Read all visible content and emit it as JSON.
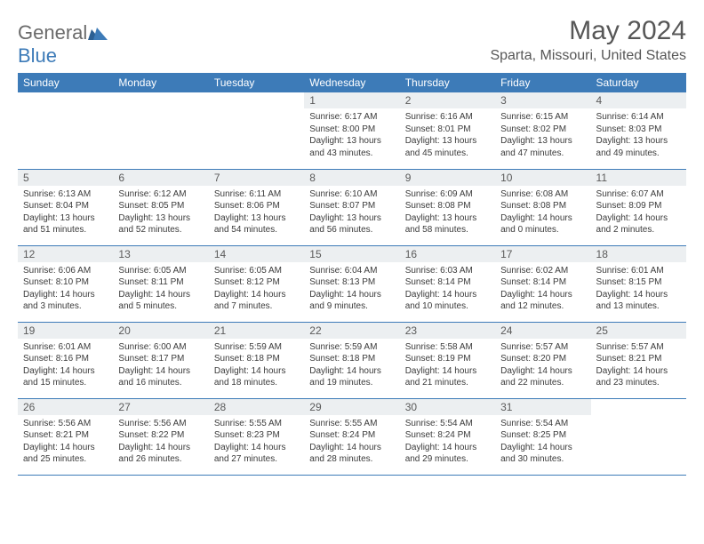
{
  "logo": {
    "general": "General",
    "blue": "Blue"
  },
  "title": "May 2024",
  "location": "Sparta, Missouri, United States",
  "colors": {
    "header_bg": "#3d7bb8",
    "header_text": "#ffffff",
    "daynum_bg": "#eceff1",
    "text": "#3a3a3a",
    "title_text": "#575757",
    "row_border": "#3d7bb8"
  },
  "dayHeaders": [
    "Sunday",
    "Monday",
    "Tuesday",
    "Wednesday",
    "Thursday",
    "Friday",
    "Saturday"
  ],
  "weeks": [
    [
      null,
      null,
      null,
      {
        "d": "1",
        "sr": "6:17 AM",
        "ss": "8:00 PM",
        "dl": "13 hours and 43 minutes."
      },
      {
        "d": "2",
        "sr": "6:16 AM",
        "ss": "8:01 PM",
        "dl": "13 hours and 45 minutes."
      },
      {
        "d": "3",
        "sr": "6:15 AM",
        "ss": "8:02 PM",
        "dl": "13 hours and 47 minutes."
      },
      {
        "d": "4",
        "sr": "6:14 AM",
        "ss": "8:03 PM",
        "dl": "13 hours and 49 minutes."
      }
    ],
    [
      {
        "d": "5",
        "sr": "6:13 AM",
        "ss": "8:04 PM",
        "dl": "13 hours and 51 minutes."
      },
      {
        "d": "6",
        "sr": "6:12 AM",
        "ss": "8:05 PM",
        "dl": "13 hours and 52 minutes."
      },
      {
        "d": "7",
        "sr": "6:11 AM",
        "ss": "8:06 PM",
        "dl": "13 hours and 54 minutes."
      },
      {
        "d": "8",
        "sr": "6:10 AM",
        "ss": "8:07 PM",
        "dl": "13 hours and 56 minutes."
      },
      {
        "d": "9",
        "sr": "6:09 AM",
        "ss": "8:08 PM",
        "dl": "13 hours and 58 minutes."
      },
      {
        "d": "10",
        "sr": "6:08 AM",
        "ss": "8:08 PM",
        "dl": "14 hours and 0 minutes."
      },
      {
        "d": "11",
        "sr": "6:07 AM",
        "ss": "8:09 PM",
        "dl": "14 hours and 2 minutes."
      }
    ],
    [
      {
        "d": "12",
        "sr": "6:06 AM",
        "ss": "8:10 PM",
        "dl": "14 hours and 3 minutes."
      },
      {
        "d": "13",
        "sr": "6:05 AM",
        "ss": "8:11 PM",
        "dl": "14 hours and 5 minutes."
      },
      {
        "d": "14",
        "sr": "6:05 AM",
        "ss": "8:12 PM",
        "dl": "14 hours and 7 minutes."
      },
      {
        "d": "15",
        "sr": "6:04 AM",
        "ss": "8:13 PM",
        "dl": "14 hours and 9 minutes."
      },
      {
        "d": "16",
        "sr": "6:03 AM",
        "ss": "8:14 PM",
        "dl": "14 hours and 10 minutes."
      },
      {
        "d": "17",
        "sr": "6:02 AM",
        "ss": "8:14 PM",
        "dl": "14 hours and 12 minutes."
      },
      {
        "d": "18",
        "sr": "6:01 AM",
        "ss": "8:15 PM",
        "dl": "14 hours and 13 minutes."
      }
    ],
    [
      {
        "d": "19",
        "sr": "6:01 AM",
        "ss": "8:16 PM",
        "dl": "14 hours and 15 minutes."
      },
      {
        "d": "20",
        "sr": "6:00 AM",
        "ss": "8:17 PM",
        "dl": "14 hours and 16 minutes."
      },
      {
        "d": "21",
        "sr": "5:59 AM",
        "ss": "8:18 PM",
        "dl": "14 hours and 18 minutes."
      },
      {
        "d": "22",
        "sr": "5:59 AM",
        "ss": "8:18 PM",
        "dl": "14 hours and 19 minutes."
      },
      {
        "d": "23",
        "sr": "5:58 AM",
        "ss": "8:19 PM",
        "dl": "14 hours and 21 minutes."
      },
      {
        "d": "24",
        "sr": "5:57 AM",
        "ss": "8:20 PM",
        "dl": "14 hours and 22 minutes."
      },
      {
        "d": "25",
        "sr": "5:57 AM",
        "ss": "8:21 PM",
        "dl": "14 hours and 23 minutes."
      }
    ],
    [
      {
        "d": "26",
        "sr": "5:56 AM",
        "ss": "8:21 PM",
        "dl": "14 hours and 25 minutes."
      },
      {
        "d": "27",
        "sr": "5:56 AM",
        "ss": "8:22 PM",
        "dl": "14 hours and 26 minutes."
      },
      {
        "d": "28",
        "sr": "5:55 AM",
        "ss": "8:23 PM",
        "dl": "14 hours and 27 minutes."
      },
      {
        "d": "29",
        "sr": "5:55 AM",
        "ss": "8:24 PM",
        "dl": "14 hours and 28 minutes."
      },
      {
        "d": "30",
        "sr": "5:54 AM",
        "ss": "8:24 PM",
        "dl": "14 hours and 29 minutes."
      },
      {
        "d": "31",
        "sr": "5:54 AM",
        "ss": "8:25 PM",
        "dl": "14 hours and 30 minutes."
      },
      null
    ]
  ],
  "labels": {
    "sunrise": "Sunrise: ",
    "sunset": "Sunset: ",
    "daylight": "Daylight: "
  }
}
